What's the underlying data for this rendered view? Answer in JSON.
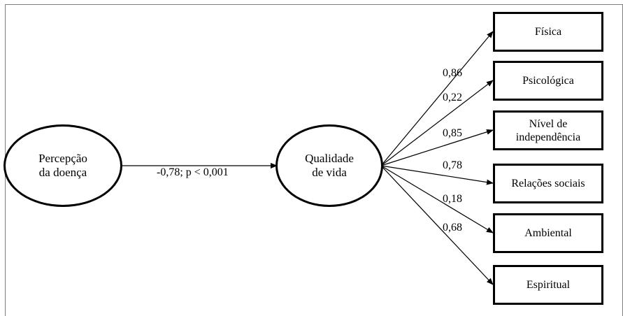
{
  "latent": {
    "percepcao": "Percepção\nda doença",
    "qualidade": "Qualidade\nde vida"
  },
  "main_path": {
    "label": "-0,78; p < 0,001"
  },
  "domains": [
    {
      "label": "Física",
      "coef": "0,86"
    },
    {
      "label": "Psicológica",
      "coef": "0,22"
    },
    {
      "label": "Nível de\nindependência",
      "coef": "0,85"
    },
    {
      "label": "Relações sociais",
      "coef": "0,78"
    },
    {
      "label": "Ambiental",
      "coef": "0,18"
    },
    {
      "label": "Espiritual",
      "coef": "0,68"
    }
  ]
}
